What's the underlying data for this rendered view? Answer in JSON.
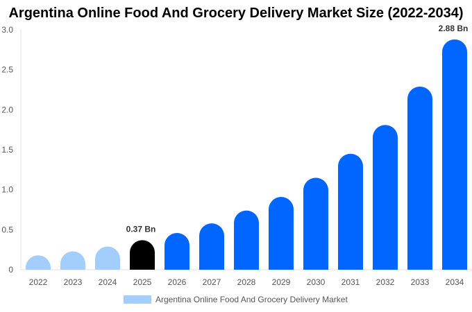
{
  "chart_data": {
    "type": "bar",
    "title": "Argentina Online Food And Grocery Delivery Market Size (2022-2034)",
    "categories": [
      "2022",
      "2023",
      "2024",
      "2025",
      "2026",
      "2027",
      "2028",
      "2029",
      "2030",
      "2031",
      "2032",
      "2033",
      "2034"
    ],
    "series": [
      {
        "name": "Argentina Online Food And Grocery Delivery Market",
        "values": [
          0.18,
          0.23,
          0.29,
          0.37,
          0.46,
          0.58,
          0.74,
          0.91,
          1.15,
          1.45,
          1.81,
          2.29,
          2.88
        ]
      }
    ],
    "data_labels": [
      {
        "category": "2025",
        "text": "0.37 Bn"
      },
      {
        "category": "2034",
        "text": "2.88 Bn"
      }
    ],
    "ylim": [
      0,
      3.0
    ],
    "yticks": [
      "0",
      "0.5",
      "1.0",
      "1.5",
      "2.0",
      "2.5",
      "3.0"
    ],
    "grid": false,
    "legend_position": "bottom",
    "colors": {
      "historical": "#a3cefc",
      "current": "#000000",
      "forecast": "#0066ff"
    }
  }
}
